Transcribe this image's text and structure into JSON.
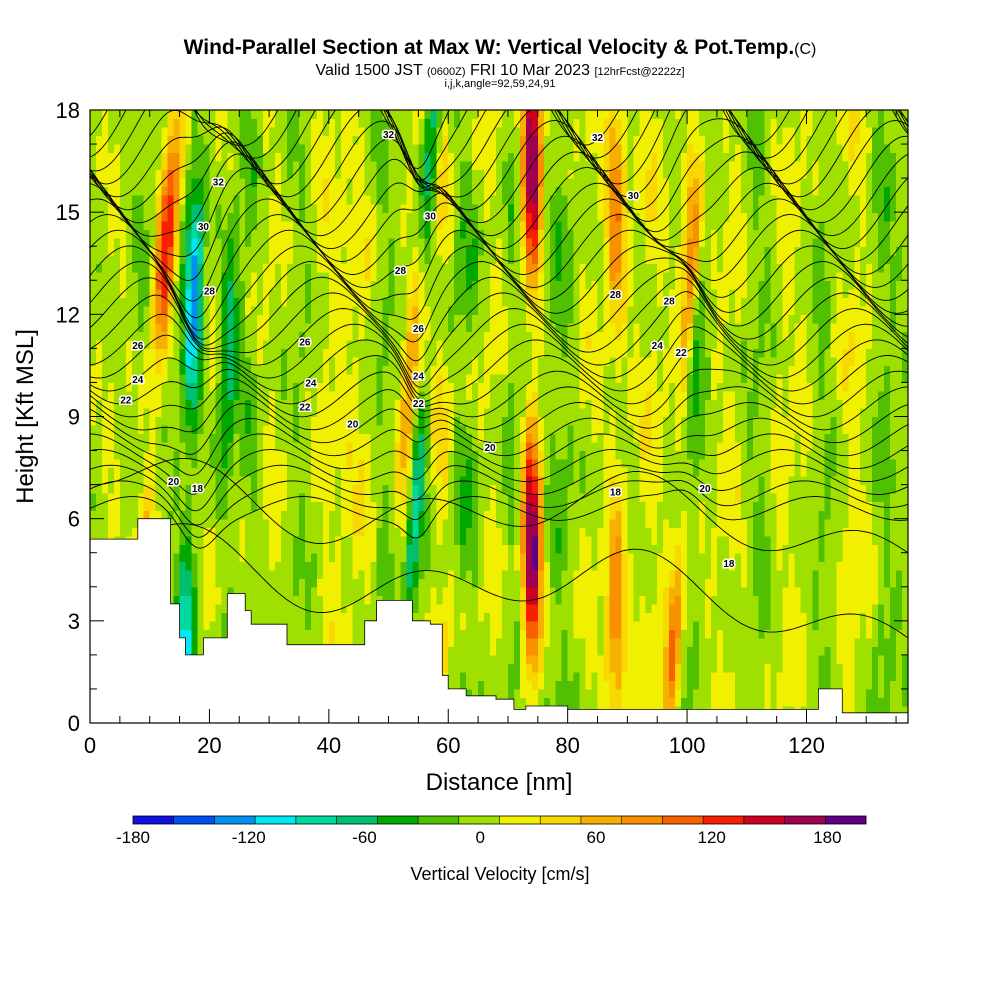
{
  "header": {
    "title": "Wind-Parallel Section at Max W: Vertical Velocity & Pot.Temp.",
    "copyright": "(C)",
    "valid_prefix": "Valid 1500 JST",
    "valid_z": "(0600Z)",
    "valid_date": "FRI 10 Mar 2023",
    "valid_fcst": "[12hrFcst@2222z]",
    "indices": "i,j,k,angle=92,59,24,91"
  },
  "chart_data": {
    "type": "heatmap",
    "xlabel": "Distance [nm]",
    "ylabel": "Height [Kft MSL]",
    "xlim": [
      0,
      137
    ],
    "ylim": [
      0,
      18
    ],
    "xticks": [
      "0",
      "20",
      "40",
      "60",
      "80",
      "100",
      "120"
    ],
    "yticks": [
      "0",
      "3",
      "6",
      "9",
      "12",
      "15",
      "18"
    ],
    "colorbar": {
      "label": "Vertical Velocity [cm/s]",
      "range": [
        -180,
        200
      ],
      "ticks": [
        "-180",
        "-120",
        "-60",
        "0",
        "60",
        "120",
        "180"
      ],
      "colors": [
        "#1010e0",
        "#0050f0",
        "#0090f0",
        "#00e8f0",
        "#00d8a0",
        "#00c070",
        "#00a800",
        "#50c000",
        "#a0e000",
        "#f0f000",
        "#f8d800",
        "#f8b000",
        "#f89000",
        "#f86000",
        "#f82000",
        "#d00020",
        "#a00050",
        "#600080"
      ]
    },
    "contours": {
      "name": "Pot.Temp.",
      "labels": [
        "32",
        "30",
        "28",
        "26",
        "24",
        "22",
        "20",
        "18"
      ]
    },
    "vertical_velocity_columns": [
      {
        "x": 11,
        "w_max": 140
      },
      {
        "x": 17,
        "w_max": -130
      },
      {
        "x": 23,
        "w_max": -70
      },
      {
        "x": 54,
        "w_max": 130
      },
      {
        "x": 55,
        "w_max": -130
      },
      {
        "x": 74,
        "w_max": 190
      },
      {
        "x": 88,
        "w_max": 90
      },
      {
        "x": 100,
        "w_max": 120
      },
      {
        "x": 101,
        "w_max": -80
      }
    ],
    "terrain_height_kft": [
      [
        0,
        5.4
      ],
      [
        7,
        5.4
      ],
      [
        8,
        6.0
      ],
      [
        13,
        6.0
      ],
      [
        13.5,
        3.5
      ],
      [
        15,
        2.5
      ],
      [
        16,
        2.0
      ],
      [
        19,
        2.5
      ],
      [
        23,
        3.8
      ],
      [
        26,
        3.3
      ],
      [
        27,
        2.9
      ],
      [
        32,
        2.9
      ],
      [
        33,
        2.3
      ],
      [
        43,
        2.3
      ],
      [
        46,
        3.0
      ],
      [
        48,
        3.6
      ],
      [
        52,
        3.6
      ],
      [
        54,
        3.0
      ],
      [
        57,
        2.9
      ],
      [
        59,
        1.4
      ],
      [
        60,
        1.0
      ],
      [
        63,
        0.8
      ],
      [
        68,
        0.7
      ],
      [
        71,
        0.4
      ],
      [
        73,
        0.5
      ],
      [
        76,
        0.5
      ],
      [
        80,
        0.4
      ],
      [
        120,
        0.4
      ],
      [
        122,
        1.0
      ],
      [
        125,
        1.0
      ],
      [
        126,
        0.3
      ],
      [
        137,
        0.3
      ]
    ]
  }
}
